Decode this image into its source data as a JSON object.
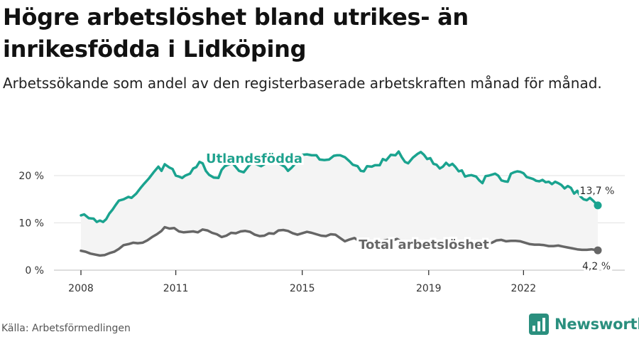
{
  "title": "Högre arbetslöshet bland utrikes- än inrikesfödda i Lidköping",
  "subtitle": "Arbetssökande som andel av den registerbaserade arbetskraften månad för månad.",
  "source": "Källa: Arbetsförmedlingen",
  "brand": {
    "name": "Newsworthy",
    "color": "#2a8f7e"
  },
  "chart_data": {
    "type": "line",
    "ylim": [
      0,
      30
    ],
    "xlim": [
      2008,
      2022.9
    ],
    "y_ticks": [
      {
        "value": 0,
        "label": "0 %"
      },
      {
        "value": 10,
        "label": "10 %"
      },
      {
        "value": 20,
        "label": "20 %"
      }
    ],
    "x_ticks": [
      {
        "value": 2008,
        "label": "2008"
      },
      {
        "value": 2011,
        "label": "2011"
      },
      {
        "value": 2015,
        "label": "2015"
      },
      {
        "value": 2019,
        "label": "2019"
      },
      {
        "value": 2022,
        "label": "2022"
      }
    ],
    "grid": true,
    "series": [
      {
        "name": "Utlandsfödda",
        "color": "#1aa38f",
        "end_label": "13,7 %",
        "points": [
          [
            2008.0,
            11.6
          ],
          [
            2008.1,
            11.8
          ],
          [
            2008.25,
            11.0
          ],
          [
            2008.4,
            10.9
          ],
          [
            2008.5,
            10.2
          ],
          [
            2008.6,
            10.5
          ],
          [
            2008.7,
            10.2
          ],
          [
            2008.8,
            10.8
          ],
          [
            2008.9,
            12.0
          ],
          [
            2009.0,
            12.8
          ],
          [
            2009.1,
            13.8
          ],
          [
            2009.2,
            14.7
          ],
          [
            2009.35,
            15.0
          ],
          [
            2009.5,
            15.5
          ],
          [
            2009.6,
            15.3
          ],
          [
            2009.75,
            16.2
          ],
          [
            2009.9,
            17.5
          ],
          [
            2010.0,
            18.3
          ],
          [
            2010.15,
            19.4
          ],
          [
            2010.3,
            20.7
          ],
          [
            2010.45,
            21.9
          ],
          [
            2010.55,
            21.0
          ],
          [
            2010.65,
            22.4
          ],
          [
            2010.8,
            21.7
          ],
          [
            2010.9,
            21.4
          ],
          [
            2011.0,
            20.0
          ],
          [
            2011.1,
            19.8
          ],
          [
            2011.2,
            19.5
          ],
          [
            2011.3,
            20.0
          ],
          [
            2011.45,
            20.4
          ],
          [
            2011.55,
            21.5
          ],
          [
            2011.65,
            21.8
          ],
          [
            2011.75,
            22.9
          ],
          [
            2011.85,
            22.6
          ],
          [
            2011.95,
            21.0
          ],
          [
            2012.05,
            20.2
          ],
          [
            2012.2,
            19.6
          ],
          [
            2012.35,
            19.5
          ],
          [
            2012.45,
            21.2
          ],
          [
            2012.55,
            22.0
          ],
          [
            2012.7,
            22.4
          ],
          [
            2012.8,
            22.6
          ],
          [
            2012.9,
            21.8
          ],
          [
            2013.0,
            21.0
          ],
          [
            2013.15,
            20.7
          ],
          [
            2013.3,
            22.0
          ],
          [
            2013.4,
            22.7
          ],
          [
            2013.55,
            22.4
          ],
          [
            2013.7,
            22.0
          ],
          [
            2013.85,
            22.6
          ],
          [
            2014.0,
            22.9
          ],
          [
            2014.15,
            23.1
          ],
          [
            2014.3,
            22.4
          ],
          [
            2014.45,
            21.9
          ],
          [
            2014.55,
            21.0
          ],
          [
            2014.65,
            21.6
          ],
          [
            2014.75,
            22.3
          ],
          [
            2014.9,
            23.9
          ],
          [
            2015.0,
            24.4
          ],
          [
            2015.15,
            24.5
          ],
          [
            2015.3,
            24.3
          ],
          [
            2015.45,
            24.3
          ],
          [
            2015.55,
            23.4
          ],
          [
            2015.7,
            23.3
          ],
          [
            2015.85,
            23.4
          ],
          [
            2016.0,
            24.2
          ],
          [
            2016.1,
            24.3
          ],
          [
            2016.2,
            24.3
          ],
          [
            2016.35,
            23.9
          ],
          [
            2016.5,
            23.0
          ],
          [
            2016.6,
            22.3
          ],
          [
            2016.75,
            22.0
          ],
          [
            2016.85,
            21.0
          ],
          [
            2016.95,
            20.9
          ],
          [
            2017.05,
            22.0
          ],
          [
            2017.2,
            21.9
          ],
          [
            2017.3,
            22.2
          ],
          [
            2017.45,
            22.2
          ],
          [
            2017.55,
            23.5
          ],
          [
            2017.65,
            23.2
          ],
          [
            2017.8,
            24.4
          ],
          [
            2017.95,
            24.3
          ],
          [
            2018.05,
            25.1
          ],
          [
            2018.15,
            23.9
          ],
          [
            2018.25,
            22.9
          ],
          [
            2018.35,
            22.6
          ],
          [
            2018.5,
            23.8
          ],
          [
            2018.65,
            24.6
          ],
          [
            2018.75,
            25.0
          ],
          [
            2018.85,
            24.4
          ],
          [
            2018.95,
            23.5
          ],
          [
            2019.05,
            23.7
          ],
          [
            2019.15,
            22.5
          ],
          [
            2019.25,
            22.3
          ],
          [
            2019.35,
            21.5
          ],
          [
            2019.45,
            21.9
          ],
          [
            2019.55,
            22.7
          ],
          [
            2019.65,
            22.1
          ],
          [
            2019.75,
            22.5
          ],
          [
            2019.85,
            21.8
          ],
          [
            2019.95,
            20.9
          ],
          [
            2020.05,
            21.1
          ],
          [
            2020.15,
            19.8
          ],
          [
            2020.25,
            20.0
          ],
          [
            2020.35,
            20.1
          ],
          [
            2020.5,
            19.8
          ],
          [
            2020.6,
            19.0
          ],
          [
            2020.7,
            18.4
          ],
          [
            2020.8,
            19.9
          ],
          [
            2020.9,
            20.0
          ],
          [
            2021.0,
            20.2
          ],
          [
            2021.1,
            20.4
          ],
          [
            2021.2,
            20.0
          ],
          [
            2021.3,
            19.0
          ],
          [
            2021.4,
            18.8
          ],
          [
            2021.5,
            18.7
          ],
          [
            2021.6,
            20.4
          ],
          [
            2021.7,
            20.7
          ],
          [
            2021.8,
            20.9
          ],
          [
            2021.9,
            20.8
          ],
          [
            2022.0,
            20.5
          ],
          [
            2022.1,
            19.7
          ],
          [
            2022.2,
            19.5
          ],
          [
            2022.3,
            19.3
          ],
          [
            2022.4,
            18.9
          ],
          [
            2022.5,
            18.8
          ],
          [
            2022.6,
            19.1
          ],
          [
            2022.7,
            18.6
          ],
          [
            2022.8,
            18.7
          ],
          [
            2022.9,
            18.2
          ],
          [
            2023.0,
            18.7
          ],
          [
            2023.1,
            18.4
          ],
          [
            2023.2,
            18.0
          ],
          [
            2023.3,
            17.3
          ],
          [
            2023.4,
            17.8
          ],
          [
            2023.5,
            17.4
          ],
          [
            2023.6,
            16.2
          ],
          [
            2023.7,
            16.8
          ],
          [
            2023.8,
            15.6
          ],
          [
            2023.9,
            15.0
          ],
          [
            2024.0,
            14.8
          ],
          [
            2024.1,
            15.3
          ],
          [
            2024.2,
            14.7
          ],
          [
            2024.35,
            13.7
          ]
        ]
      },
      {
        "name": "Total arbetslöshet",
        "color": "#666666",
        "end_label": "4,2 %",
        "points": [
          [
            2008.0,
            4.1
          ],
          [
            2008.15,
            3.9
          ],
          [
            2008.3,
            3.5
          ],
          [
            2008.45,
            3.3
          ],
          [
            2008.6,
            3.1
          ],
          [
            2008.75,
            3.2
          ],
          [
            2008.9,
            3.6
          ],
          [
            2009.05,
            3.9
          ],
          [
            2009.2,
            4.5
          ],
          [
            2009.35,
            5.3
          ],
          [
            2009.5,
            5.5
          ],
          [
            2009.65,
            5.8
          ],
          [
            2009.8,
            5.7
          ],
          [
            2009.95,
            5.8
          ],
          [
            2010.1,
            6.3
          ],
          [
            2010.25,
            7.0
          ],
          [
            2010.4,
            7.6
          ],
          [
            2010.55,
            8.3
          ],
          [
            2010.65,
            9.1
          ],
          [
            2010.8,
            8.8
          ],
          [
            2010.95,
            8.9
          ],
          [
            2011.1,
            8.2
          ],
          [
            2011.25,
            8.0
          ],
          [
            2011.4,
            8.1
          ],
          [
            2011.55,
            8.2
          ],
          [
            2011.7,
            8.0
          ],
          [
            2011.85,
            8.6
          ],
          [
            2012.0,
            8.4
          ],
          [
            2012.15,
            7.9
          ],
          [
            2012.3,
            7.6
          ],
          [
            2012.45,
            7.0
          ],
          [
            2012.6,
            7.3
          ],
          [
            2012.75,
            7.9
          ],
          [
            2012.9,
            7.8
          ],
          [
            2013.05,
            8.2
          ],
          [
            2013.2,
            8.3
          ],
          [
            2013.35,
            8.1
          ],
          [
            2013.5,
            7.5
          ],
          [
            2013.65,
            7.2
          ],
          [
            2013.8,
            7.3
          ],
          [
            2013.95,
            7.8
          ],
          [
            2014.1,
            7.7
          ],
          [
            2014.25,
            8.4
          ],
          [
            2014.4,
            8.5
          ],
          [
            2014.55,
            8.3
          ],
          [
            2014.7,
            7.8
          ],
          [
            2014.85,
            7.5
          ],
          [
            2015.0,
            7.8
          ],
          [
            2015.15,
            8.1
          ],
          [
            2015.3,
            7.9
          ],
          [
            2015.45,
            7.6
          ],
          [
            2015.6,
            7.3
          ],
          [
            2015.75,
            7.2
          ],
          [
            2015.9,
            7.6
          ],
          [
            2016.05,
            7.5
          ],
          [
            2016.2,
            6.8
          ],
          [
            2016.35,
            6.1
          ],
          [
            2016.5,
            6.5
          ],
          [
            2016.65,
            6.8
          ],
          [
            2016.8,
            6.2
          ],
          [
            2016.95,
            6.0
          ],
          [
            2017.1,
            5.8
          ],
          [
            2017.25,
            5.6
          ],
          [
            2017.4,
            6.0
          ],
          [
            2017.55,
            6.2
          ],
          [
            2017.7,
            6.4
          ],
          [
            2017.85,
            6.3
          ],
          [
            2018.0,
            6.6
          ],
          [
            2018.15,
            6.0
          ],
          [
            2018.3,
            5.6
          ],
          [
            2018.45,
            5.5
          ],
          [
            2018.6,
            5.4
          ],
          [
            2018.75,
            5.8
          ],
          [
            2018.9,
            5.7
          ],
          [
            2019.05,
            5.5
          ],
          [
            2019.2,
            5.2
          ],
          [
            2019.35,
            5.0
          ],
          [
            2019.5,
            5.2
          ],
          [
            2019.65,
            5.3
          ],
          [
            2019.8,
            5.5
          ],
          [
            2019.95,
            5.3
          ],
          [
            2020.1,
            5.0
          ],
          [
            2020.25,
            5.2
          ],
          [
            2020.4,
            5.1
          ],
          [
            2020.55,
            5.4
          ],
          [
            2020.7,
            5.6
          ],
          [
            2020.85,
            5.6
          ],
          [
            2021.0,
            5.8
          ],
          [
            2021.15,
            6.3
          ],
          [
            2021.3,
            6.4
          ],
          [
            2021.45,
            6.1
          ],
          [
            2021.6,
            6.2
          ],
          [
            2021.75,
            6.2
          ],
          [
            2021.9,
            6.1
          ],
          [
            2022.05,
            5.8
          ],
          [
            2022.2,
            5.5
          ],
          [
            2022.35,
            5.4
          ],
          [
            2022.5,
            5.4
          ],
          [
            2022.65,
            5.3
          ],
          [
            2022.8,
            5.1
          ],
          [
            2022.95,
            5.1
          ],
          [
            2023.1,
            5.2
          ],
          [
            2023.25,
            5.0
          ],
          [
            2023.4,
            4.8
          ],
          [
            2023.55,
            4.6
          ],
          [
            2023.7,
            4.4
          ],
          [
            2023.85,
            4.3
          ],
          [
            2024.0,
            4.3
          ],
          [
            2024.15,
            4.4
          ],
          [
            2024.35,
            4.2
          ]
        ]
      }
    ]
  }
}
